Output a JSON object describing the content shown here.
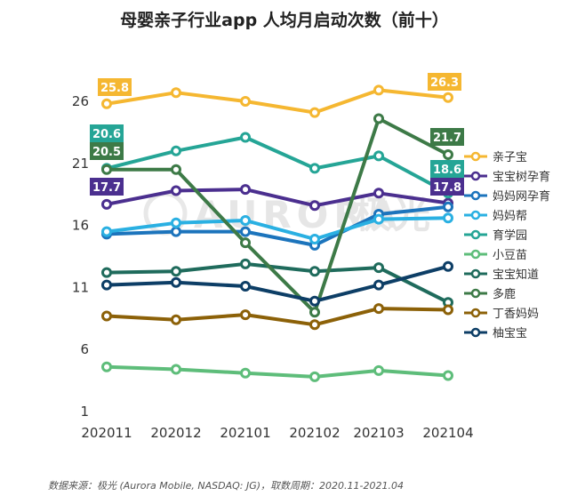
{
  "title": "母婴亲子行业app 人均月启动次数（前十）",
  "source": "数据来源：极光 (Aurora Mobile, NASDAQ: JG)，取数周期：2020.11-2021.04",
  "watermark": {
    "text": "AURORA",
    "cn": "极光"
  },
  "chart_data": {
    "type": "line",
    "title": "母婴亲子行业app 人均月启动次数（前十）",
    "categories": [
      "202011",
      "202012",
      "202101",
      "202102",
      "202103",
      "202104"
    ],
    "y_ticks": [
      1,
      6,
      11,
      16,
      21,
      26
    ],
    "ylim": [
      1,
      30
    ],
    "grid": false,
    "legend_position": "right",
    "series": [
      {
        "name": "亲子宝",
        "color": "#F5B731",
        "values": [
          25.8,
          26.7,
          26.0,
          25.1,
          26.9,
          26.3
        ]
      },
      {
        "name": "宝宝树孕育",
        "color": "#4B2F8F",
        "values": [
          17.7,
          18.8,
          18.9,
          17.6,
          18.6,
          17.8
        ]
      },
      {
        "name": "妈妈网孕育",
        "color": "#1C74BC",
        "values": [
          15.3,
          15.5,
          15.5,
          14.4,
          16.9,
          17.5
        ]
      },
      {
        "name": "妈妈帮",
        "color": "#2AB0E2",
        "values": [
          15.5,
          16.2,
          16.4,
          14.9,
          16.5,
          16.6
        ]
      },
      {
        "name": "育学园",
        "color": "#25A596",
        "values": [
          20.6,
          22.0,
          23.1,
          20.6,
          21.6,
          18.6
        ]
      },
      {
        "name": "小豆苗",
        "color": "#5EBD7A",
        "values": [
          4.6,
          4.4,
          4.1,
          3.8,
          4.3,
          3.9
        ]
      },
      {
        "name": "宝宝知道",
        "color": "#1F6B5C",
        "values": [
          12.2,
          12.3,
          12.9,
          12.3,
          12.6,
          9.8
        ]
      },
      {
        "name": "多鹿",
        "color": "#3D7A47",
        "values": [
          20.5,
          20.5,
          14.6,
          9.0,
          24.6,
          21.7
        ]
      },
      {
        "name": "丁香妈妈",
        "color": "#8C6108",
        "values": [
          8.7,
          8.4,
          8.8,
          8.0,
          9.3,
          9.2
        ]
      },
      {
        "name": "柚宝宝",
        "color": "#0D3E66",
        "values": [
          11.2,
          11.4,
          11.1,
          9.9,
          11.2,
          12.7
        ]
      }
    ],
    "data_labels": [
      {
        "series": "亲子宝",
        "category": "202011",
        "text": "25.8"
      },
      {
        "series": "亲子宝",
        "category": "202104",
        "text": "26.3"
      },
      {
        "series": "育学园",
        "category": "202011",
        "text": "20.6"
      },
      {
        "series": "多鹿",
        "category": "202011",
        "text": "20.5"
      },
      {
        "series": "宝宝树孕育",
        "category": "202011",
        "text": "17.7"
      },
      {
        "series": "多鹿",
        "category": "202104",
        "text": "21.7"
      },
      {
        "series": "育学园",
        "category": "202104",
        "text": "18.6"
      },
      {
        "series": "宝宝树孕育",
        "category": "202104",
        "text": "17.8"
      }
    ]
  }
}
